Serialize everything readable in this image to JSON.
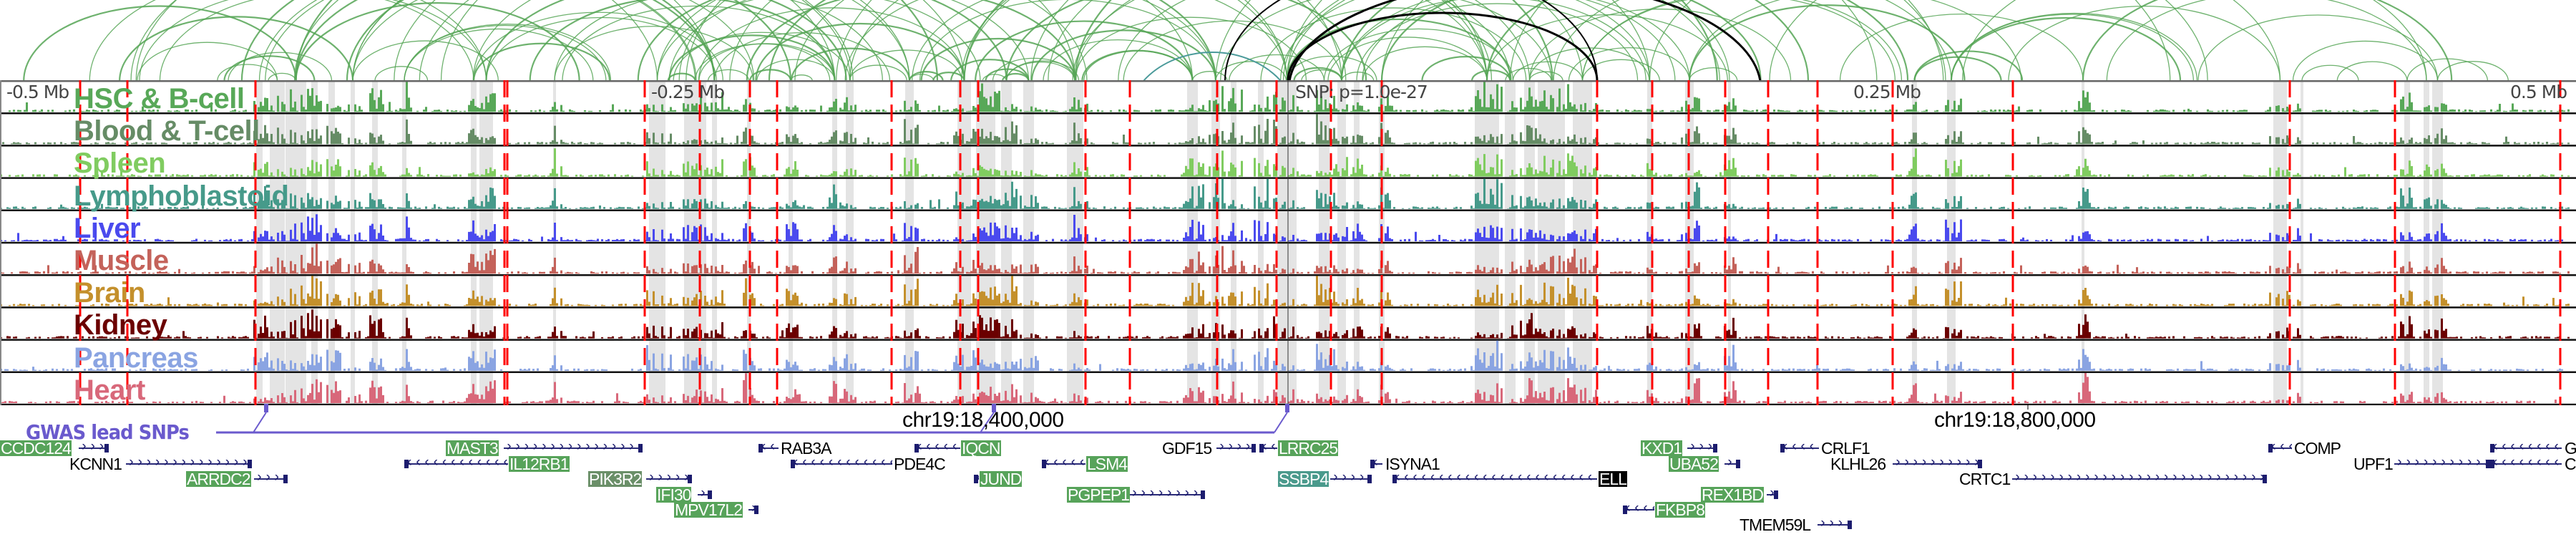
{
  "axis": {
    "left": "-0.5 Mb",
    "mid_left": "-0.25 Mb",
    "snp": "SNP: p=1.0e-27",
    "mid_right": "0.25 Mb",
    "right": "0.5 Mb"
  },
  "tracks": [
    {
      "label": "HSC & B-cell",
      "color": "#58a858"
    },
    {
      "label": "Blood & T-cell",
      "color": "#668c66"
    },
    {
      "label": "Spleen",
      "color": "#80cc60"
    },
    {
      "label": "Lymphoblastoid",
      "color": "#469a8a"
    },
    {
      "label": "Liver",
      "color": "#4a4aee"
    },
    {
      "label": "Muscle",
      "color": "#c4625a"
    },
    {
      "label": "Brain",
      "color": "#c4902c"
    },
    {
      "label": "Kidney",
      "color": "#6b0000"
    },
    {
      "label": "Pancreas",
      "color": "#8aa4e2"
    },
    {
      "label": "Heart",
      "color": "#d8687a"
    }
  ],
  "colors": {
    "snp_line": "#ff0000",
    "gwas": "#6a5acd",
    "arc": "#55a555",
    "highlight_band": "#e4e4e4"
  },
  "gwas_label": "GWAS lead SNPs",
  "coordinates": [
    "chr19:18,400,000",
    "chr19:18,800,000"
  ],
  "genes": [
    {
      "name": "CCDC124",
      "highlight": "green"
    },
    {
      "name": "KCNN1",
      "highlight": "none"
    },
    {
      "name": "ARRDC2",
      "highlight": "green"
    },
    {
      "name": "MAST3",
      "highlight": "green"
    },
    {
      "name": "IL12RB1",
      "highlight": "green"
    },
    {
      "name": "PIK3R2",
      "highlight": "dkgreen"
    },
    {
      "name": "IFI30",
      "highlight": "green"
    },
    {
      "name": "MPV17L2",
      "highlight": "green"
    },
    {
      "name": "RAB3A",
      "highlight": "none"
    },
    {
      "name": "PDE4C",
      "highlight": "none"
    },
    {
      "name": "IQCN",
      "highlight": "green"
    },
    {
      "name": "JUND",
      "highlight": "green"
    },
    {
      "name": "LSM4",
      "highlight": "green"
    },
    {
      "name": "PGPEP1",
      "highlight": "green"
    },
    {
      "name": "GDF15",
      "highlight": "none"
    },
    {
      "name": "LRRC25",
      "highlight": "green"
    },
    {
      "name": "ISYNA1",
      "highlight": "none"
    },
    {
      "name": "SSBP4",
      "highlight": "teal"
    },
    {
      "name": "ELL",
      "highlight": "black"
    },
    {
      "name": "KXD1",
      "highlight": "green"
    },
    {
      "name": "UBA52",
      "highlight": "green"
    },
    {
      "name": "REX1BD",
      "highlight": "green"
    },
    {
      "name": "FKBP8",
      "highlight": "green"
    },
    {
      "name": "TMEM59L",
      "highlight": "none"
    },
    {
      "name": "CRLF1",
      "highlight": "none"
    },
    {
      "name": "KLHL26",
      "highlight": "none"
    },
    {
      "name": "CRTC1",
      "highlight": "none"
    },
    {
      "name": "COMP",
      "highlight": "none"
    },
    {
      "name": "UPF1",
      "highlight": "none"
    },
    {
      "name": "G",
      "highlight": "none"
    },
    {
      "name": "C",
      "highlight": "none"
    }
  ]
}
